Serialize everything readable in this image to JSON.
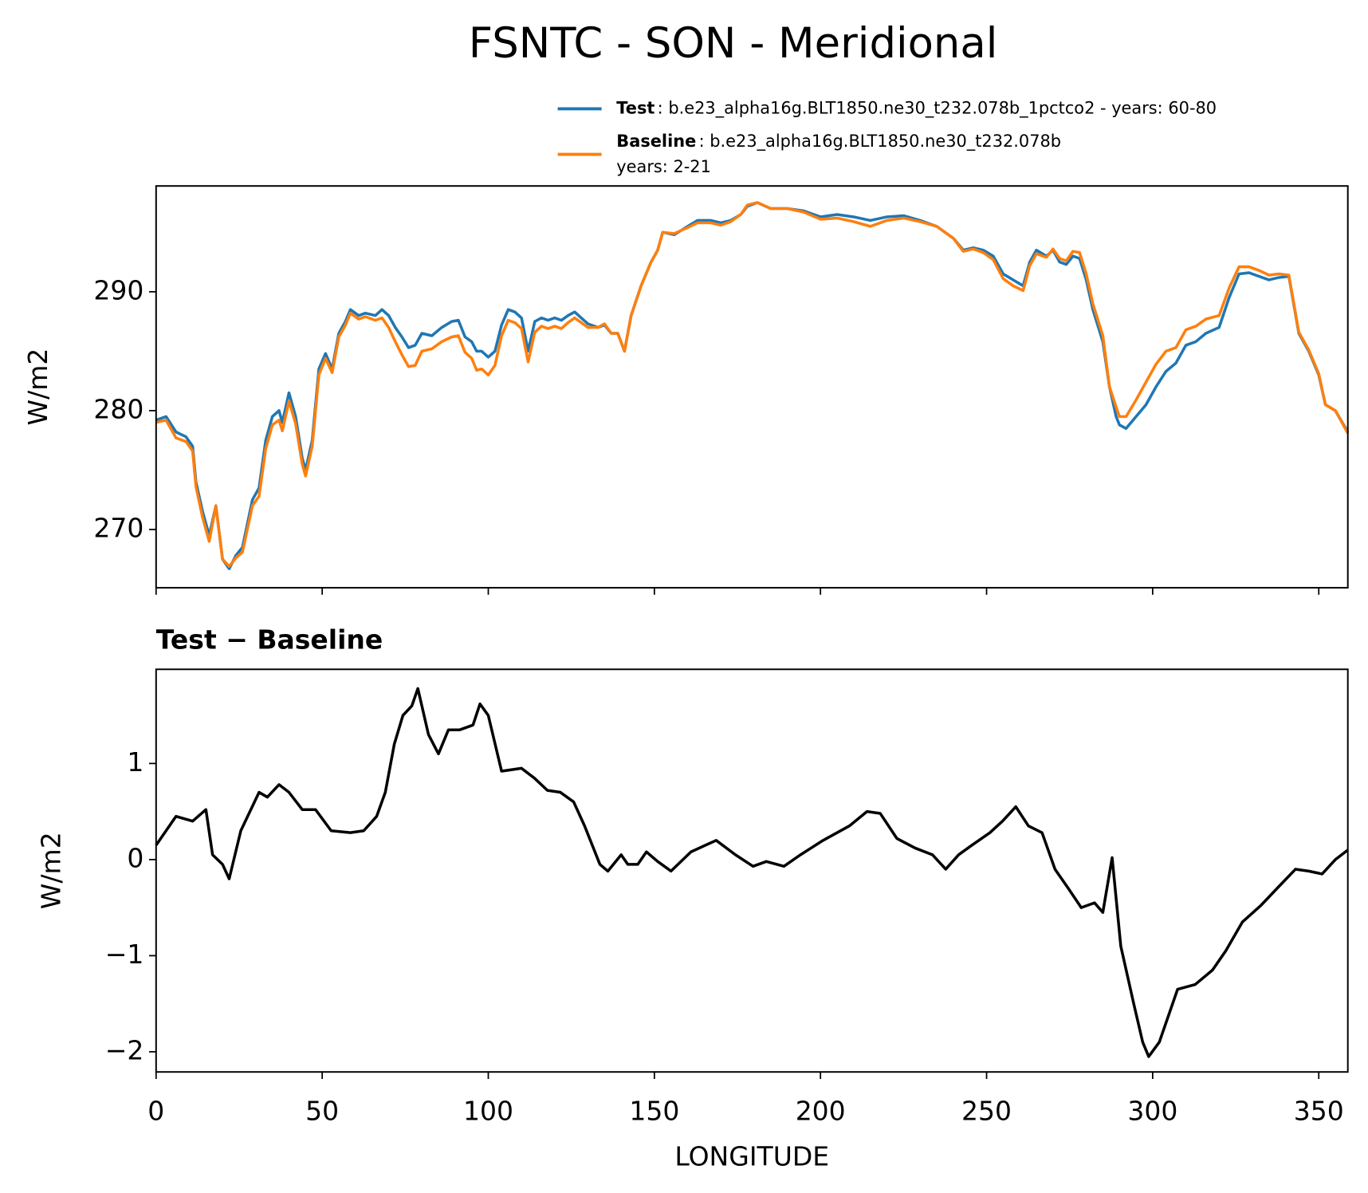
{
  "chart_data": [
    {
      "type": "line",
      "title": "FSNTC - SON - Meridional",
      "ylabel": "W/m2",
      "x": [
        0,
        3,
        6,
        9,
        11,
        12,
        14,
        16,
        18,
        20,
        22,
        24,
        26,
        29,
        31,
        33,
        35,
        37,
        38,
        40,
        42,
        44,
        45,
        47,
        49,
        51,
        53,
        55,
        57,
        58.5,
        61,
        63,
        66,
        68,
        70,
        72,
        74,
        76,
        78,
        80,
        83,
        86,
        89,
        91,
        93,
        95,
        96.5,
        98,
        100,
        102,
        104,
        106,
        108,
        110,
        112,
        114,
        116,
        118,
        120,
        122,
        124,
        126,
        128,
        130,
        133,
        135,
        137,
        139,
        141,
        143,
        146,
        149,
        151,
        152.5,
        156,
        160,
        163,
        167,
        170,
        173,
        176,
        178,
        181,
        185,
        190,
        195,
        200,
        205,
        210,
        215,
        220,
        225,
        230,
        235,
        240,
        243,
        246,
        249,
        252,
        255,
        258,
        261,
        263,
        265,
        268,
        270,
        272,
        274,
        276,
        278,
        280,
        282,
        285,
        287,
        289,
        290,
        292,
        295,
        298,
        301,
        304,
        307,
        310,
        313,
        316,
        320,
        323,
        326,
        329,
        332,
        335,
        338,
        341,
        344,
        347,
        350,
        352,
        355,
        358.75
      ],
      "series": [
        {
          "name": "Test",
          "label": ": b.e23_alpha16g.BLT1850.ne30_t232.078b_1pctco2 - years: 60-80",
          "color": "#1f77b4",
          "values": [
            279.2,
            279.5,
            278.2,
            277.8,
            277.0,
            274.0,
            271.5,
            269.5,
            272.0,
            267.5,
            266.7,
            267.8,
            268.5,
            272.5,
            273.5,
            277.5,
            279.5,
            280.0,
            279.0,
            281.5,
            279.5,
            276.0,
            275.0,
            277.5,
            283.5,
            284.8,
            283.5,
            286.5,
            287.5,
            288.5,
            288.0,
            288.2,
            288.0,
            288.5,
            288.0,
            287.0,
            286.2,
            285.3,
            285.5,
            286.5,
            286.3,
            287.0,
            287.5,
            287.6,
            286.2,
            285.8,
            285.0,
            285.0,
            284.5,
            285.0,
            287.2,
            288.5,
            288.3,
            287.8,
            285.0,
            287.5,
            287.8,
            287.6,
            287.8,
            287.6,
            288.0,
            288.3,
            287.8,
            287.3,
            287.0,
            287.2,
            286.5,
            286.5,
            285.0,
            288.0,
            290.5,
            292.5,
            293.5,
            295.0,
            294.8,
            295.5,
            296.0,
            296.0,
            295.8,
            296.0,
            296.5,
            297.2,
            297.5,
            297.0,
            297.0,
            296.8,
            296.3,
            296.5,
            296.3,
            296.0,
            296.3,
            296.4,
            296.0,
            295.5,
            294.5,
            293.5,
            293.7,
            293.5,
            293.0,
            291.5,
            291.0,
            290.5,
            292.5,
            293.5,
            293.0,
            293.5,
            292.5,
            292.3,
            293.0,
            292.8,
            291.0,
            288.5,
            285.8,
            282.0,
            279.5,
            278.8,
            278.5,
            279.5,
            280.5,
            282.0,
            283.3,
            284.0,
            285.5,
            285.8,
            286.5,
            287.0,
            289.5,
            291.5,
            291.6,
            291.3,
            291.0,
            291.2,
            291.3,
            286.5,
            285.0,
            283.0,
            280.5,
            280.0,
            278.2
          ]
        },
        {
          "name": "Baseline",
          "label_lines": [
            ": b.e23_alpha16g.BLT1850.ne30_t232.078b",
            "years: 2-21"
          ],
          "color": "#ff7f0e",
          "values": [
            279.0,
            279.2,
            277.7,
            277.4,
            276.6,
            273.6,
            271.0,
            269.0,
            272.0,
            267.5,
            266.9,
            267.6,
            268.1,
            272.0,
            272.8,
            276.8,
            278.8,
            279.2,
            278.3,
            280.8,
            278.9,
            275.5,
            274.5,
            277.0,
            283.0,
            284.4,
            283.2,
            286.2,
            287.2,
            288.2,
            287.7,
            287.9,
            287.6,
            287.8,
            287.0,
            285.8,
            284.7,
            283.7,
            283.8,
            285.0,
            285.2,
            285.8,
            286.2,
            286.3,
            284.9,
            284.4,
            283.4,
            283.5,
            283.0,
            283.8,
            286.3,
            287.6,
            287.4,
            286.9,
            284.1,
            286.6,
            287.1,
            286.9,
            287.1,
            286.9,
            287.4,
            287.8,
            287.4,
            287.0,
            287.0,
            287.3,
            286.5,
            286.5,
            285.0,
            288.0,
            290.5,
            292.5,
            293.5,
            295.0,
            294.9,
            295.4,
            295.8,
            295.8,
            295.6,
            295.9,
            296.5,
            297.3,
            297.5,
            297.0,
            297.0,
            296.7,
            296.1,
            296.2,
            295.9,
            295.5,
            296.0,
            296.2,
            295.9,
            295.5,
            294.5,
            293.4,
            293.6,
            293.3,
            292.7,
            291.1,
            290.5,
            290.1,
            292.2,
            293.2,
            292.9,
            293.6,
            292.8,
            292.6,
            293.4,
            293.3,
            291.5,
            289.0,
            286.3,
            282.0,
            280.3,
            279.5,
            279.5,
            280.9,
            282.4,
            283.9,
            285.0,
            285.3,
            286.8,
            287.1,
            287.7,
            288.0,
            290.3,
            292.1,
            292.1,
            291.8,
            291.4,
            291.5,
            291.4,
            286.6,
            285.1,
            283.1,
            280.5,
            280.0,
            278.1
          ]
        }
      ],
      "xlim": [
        0,
        358.75
      ],
      "xticks": [
        0,
        50,
        100,
        150,
        200,
        250,
        300,
        350
      ],
      "ylim": [
        265.1,
        298.9
      ],
      "yticks": [
        270,
        280,
        290
      ]
    },
    {
      "type": "line",
      "title": "Test − Baseline",
      "ylabel": "W/m2",
      "xlabel": "LONGITUDE",
      "x": [
        0,
        3,
        6,
        11,
        15,
        17,
        20,
        22,
        25.5,
        31,
        33.5,
        37,
        40,
        44,
        48,
        52.7,
        58.5,
        62.5,
        66.4,
        69,
        71.7,
        74.3,
        77,
        78.8,
        82,
        85,
        88,
        91.4,
        95.4,
        97.5,
        100,
        104,
        110,
        113.8,
        117.8,
        121.7,
        125.7,
        129,
        133.6,
        136,
        140,
        142,
        145,
        147.6,
        151,
        155,
        161,
        168.6,
        174.4,
        179.7,
        183.7,
        189,
        194,
        200.8,
        208.7,
        214,
        218,
        223,
        228.5,
        233.7,
        237.7,
        241.6,
        245.6,
        251,
        254.8,
        258.8,
        262.6,
        266.7,
        270.6,
        274.6,
        278.5,
        282.5,
        285,
        287.8,
        290.4,
        294.3,
        297,
        298.8,
        302,
        307.5,
        312.8,
        318,
        322,
        327,
        332.5,
        338,
        343,
        347,
        351,
        355,
        358.75
      ],
      "series": [
        {
          "color": "#000000",
          "values": [
            0.15,
            0.3,
            0.45,
            0.4,
            0.52,
            0.05,
            -0.05,
            -0.2,
            0.3,
            0.7,
            0.65,
            0.78,
            0.7,
            0.52,
            0.52,
            0.3,
            0.28,
            0.3,
            0.45,
            0.7,
            1.2,
            1.5,
            1.6,
            1.78,
            1.3,
            1.1,
            1.35,
            1.35,
            1.4,
            1.62,
            1.5,
            0.92,
            0.95,
            0.85,
            0.72,
            0.7,
            0.6,
            0.35,
            -0.05,
            -0.12,
            0.05,
            -0.05,
            -0.05,
            0.08,
            -0.02,
            -0.12,
            0.08,
            0.2,
            0.05,
            -0.07,
            -0.02,
            -0.07,
            0.05,
            0.2,
            0.35,
            0.5,
            0.48,
            0.22,
            0.12,
            0.05,
            -0.1,
            0.05,
            0.15,
            0.28,
            0.4,
            0.55,
            0.35,
            0.28,
            -0.1,
            -0.3,
            -0.5,
            -0.45,
            -0.55,
            0.02,
            -0.9,
            -1.5,
            -1.9,
            -2.05,
            -1.9,
            -1.35,
            -1.3,
            -1.15,
            -0.95,
            -0.65,
            -0.48,
            -0.28,
            -0.1,
            -0.12,
            -0.15,
            0,
            0.1
          ]
        }
      ],
      "xlim": [
        0,
        358.75
      ],
      "xticks": [
        0,
        50,
        100,
        150,
        200,
        250,
        300,
        350
      ],
      "ylim": [
        -2.21,
        1.98
      ],
      "yticks": [
        {
          "value": -2,
          "label": "−2"
        },
        {
          "value": -1,
          "label": "−1"
        },
        0,
        1
      ]
    }
  ]
}
